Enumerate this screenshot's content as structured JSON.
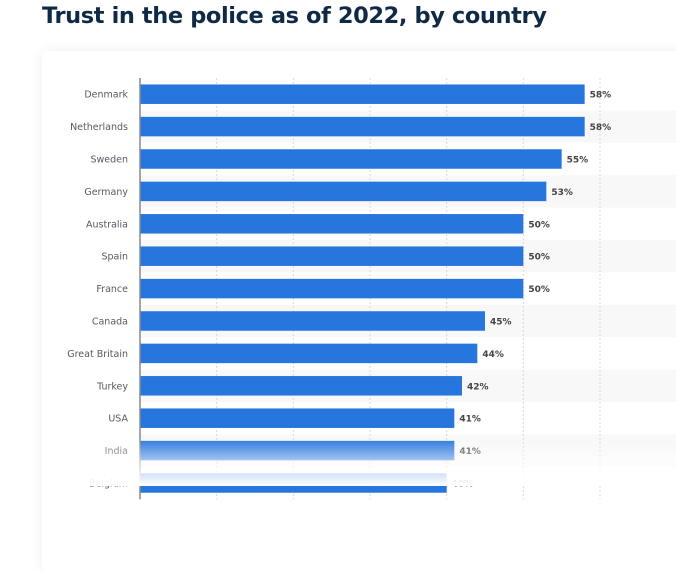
{
  "page": {
    "title": "Trust in the police as of 2022, by country"
  },
  "chart_data": {
    "type": "bar",
    "orientation": "horizontal",
    "title": "Trust in the police as of 2022, by country",
    "xlabel": "",
    "ylabel": "",
    "categories": [
      "Denmark",
      "Netherlands",
      "Sweden",
      "Germany",
      "Australia",
      "Spain",
      "France",
      "Canada",
      "Great Britain",
      "Turkey",
      "USA",
      "India",
      "Belgium"
    ],
    "values": [
      58,
      58,
      55,
      53,
      50,
      50,
      50,
      45,
      44,
      42,
      41,
      41,
      40
    ],
    "value_labels": [
      "58%",
      "58%",
      "55%",
      "53%",
      "50%",
      "50%",
      "50%",
      "45%",
      "44%",
      "42%",
      "41%",
      "41%",
      "40%"
    ],
    "unit": "%",
    "xlim": [
      0,
      60
    ],
    "grid_step": 10,
    "grid": true,
    "bar_color": "#2776dd",
    "legend": "none",
    "note": "last row (Belgium) partially faded out at bottom of view"
  }
}
